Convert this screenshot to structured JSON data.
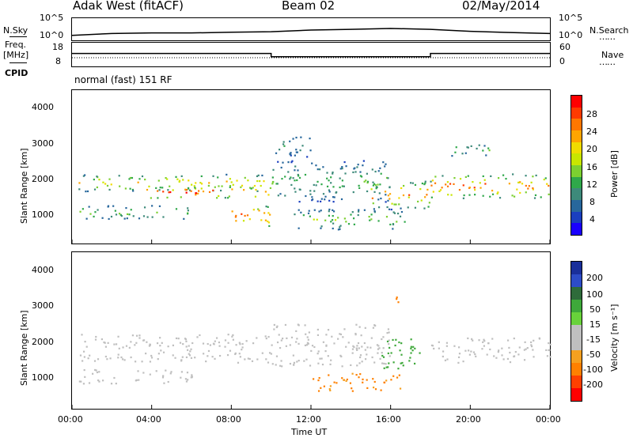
{
  "header": {
    "station": "Adak West (fitACF)",
    "beam": "Beam 02",
    "date": "02/May/2014"
  },
  "side_labels": {
    "nsky": "N.Sky",
    "freq": "Freq.",
    "mhz": "[MHz]",
    "cpid": "CPID",
    "nsearch": "N.Search",
    "nave": "Nave",
    "nsky_top": "10^5",
    "nsky_bot": "10^0",
    "freq_top": "18",
    "freq_bot": "8",
    "nave_top": "60",
    "nave_bot": "0",
    "ns_top": "10^5",
    "ns_bot": "10^0",
    "dots": "……"
  },
  "cpid_text": "normal (fast) 151 RF",
  "power_panel": {
    "ylabel": "Slant Range [km]",
    "yticks": [
      "4000",
      "3000",
      "2000",
      "1000"
    ],
    "cbar_label": "Power [dB]",
    "cbar_ticks": [
      "28",
      "24",
      "20",
      "16",
      "12",
      "8",
      "4"
    ],
    "cbar_colors": [
      "#ff0000",
      "#ff3a00",
      "#ff7700",
      "#ffa500",
      "#f0dc00",
      "#c8e600",
      "#7cd030",
      "#2fa84a",
      "#3d8a7a",
      "#27679c",
      "#1a3fbf",
      "#1a00ff"
    ]
  },
  "velocity_panel": {
    "ylabel": "Slant Range [km]",
    "yticks": [
      "4000",
      "3000",
      "2000",
      "1000"
    ],
    "cbar_label": "Velocity [m s⁻¹]",
    "cbar_ticks": [
      "200",
      "100",
      "50",
      "15",
      "-15",
      "-50",
      "-100",
      "-200"
    ],
    "cbar_colors": [
      "#1a2f9a",
      "#2d4cc7",
      "#2e6b3a",
      "#3ea83a",
      "#68d23a",
      "#bfbfbf",
      "#bfbfbf",
      "#f5a020",
      "#ff8000",
      "#ff4000",
      "#ff0000"
    ]
  },
  "xaxis": {
    "label": "Time UT",
    "ticks": [
      "00:00",
      "04:00",
      "08:00",
      "12:00",
      "16:00",
      "20:00",
      "00:00"
    ]
  },
  "chart_data": [
    {
      "type": "line",
      "title": "N.Sky / N.Search",
      "ylim_log10": [
        0,
        5
      ],
      "x_hours": [
        0,
        2,
        4,
        6,
        8,
        10,
        12,
        14,
        16,
        18,
        20,
        22,
        24
      ],
      "series": [
        {
          "name": "N.Sky",
          "values": [
            10,
            30,
            40,
            40,
            60,
            80,
            200,
            300,
            500,
            300,
            100,
            50,
            30
          ]
        }
      ]
    },
    {
      "type": "line",
      "title": "Freq. / Nave",
      "ylim": [
        8,
        18
      ],
      "x_hours": [
        0,
        10,
        10,
        18,
        18,
        24
      ],
      "series": [
        {
          "name": "Freq.",
          "values": [
            13.5,
            13.5,
            12,
            12,
            13.5,
            13.5
          ]
        },
        {
          "name": "Nave",
          "values": [
            13,
            13,
            13,
            13,
            13,
            13
          ]
        }
      ]
    },
    {
      "type": "heatmap",
      "title": "Power [dB]",
      "xlabel": "Time UT",
      "ylabel": "Slant Range [km]",
      "xlim_hours": [
        0,
        24
      ],
      "ylim_km": [
        180,
        4600
      ],
      "clim_db": [
        0,
        30
      ],
      "bands": [
        {
          "t0": 0.3,
          "t1": 10.0,
          "r0": 1700,
          "r1": 2200,
          "peak_db": 20
        },
        {
          "t0": 3.5,
          "t1": 10.0,
          "r0": 1500,
          "r1": 1850,
          "peak_db": 30
        },
        {
          "t0": 0.3,
          "t1": 6.0,
          "r0": 900,
          "r1": 1300,
          "peak_db": 14
        },
        {
          "t0": 8.0,
          "t1": 10.0,
          "r0": 700,
          "r1": 1300,
          "peak_db": 28
        },
        {
          "t0": 10.0,
          "t1": 16.0,
          "r0": 1400,
          "r1": 2600,
          "peak_db": 12
        },
        {
          "t0": 15.0,
          "t1": 18.0,
          "r0": 1200,
          "r1": 2000,
          "peak_db": 24
        },
        {
          "t0": 11.0,
          "t1": 17.0,
          "r0": 600,
          "r1": 1200,
          "peak_db": 14
        },
        {
          "t0": 18.0,
          "t1": 24.0,
          "r0": 1500,
          "r1": 2200,
          "peak_db": 26
        },
        {
          "t0": 10.0,
          "t1": 12.0,
          "r0": 2700,
          "r1": 3300,
          "peak_db": 10
        },
        {
          "t0": 19.0,
          "t1": 21.0,
          "r0": 2700,
          "r1": 3100,
          "peak_db": 12
        }
      ]
    },
    {
      "type": "heatmap",
      "title": "Velocity [m s⁻¹]",
      "xlabel": "Time UT",
      "ylabel": "Slant Range [km]",
      "xlim_hours": [
        0,
        24
      ],
      "ylim_km": [
        180,
        4600
      ],
      "clim_ms": [
        -200,
        200
      ],
      "bands": [
        {
          "t0": 0.3,
          "t1": 10.0,
          "r0": 1500,
          "r1": 2300,
          "velocity": 0
        },
        {
          "t0": 0.3,
          "t1": 6.0,
          "r0": 900,
          "r1": 1300,
          "velocity": 0
        },
        {
          "t0": 10.0,
          "t1": 16.0,
          "r0": 1400,
          "r1": 2600,
          "velocity": 0
        },
        {
          "t0": 15.5,
          "t1": 17.5,
          "r0": 1300,
          "r1": 2200,
          "velocity": 30
        },
        {
          "t0": 12.0,
          "t1": 16.5,
          "r0": 700,
          "r1": 1200,
          "velocity": -60
        },
        {
          "t0": 18.0,
          "t1": 24.0,
          "r0": 1500,
          "r1": 2200,
          "velocity": 0
        },
        {
          "t0": 16.0,
          "t1": 16.6,
          "r0": 3200,
          "r1": 3500,
          "velocity": -80
        }
      ]
    }
  ]
}
